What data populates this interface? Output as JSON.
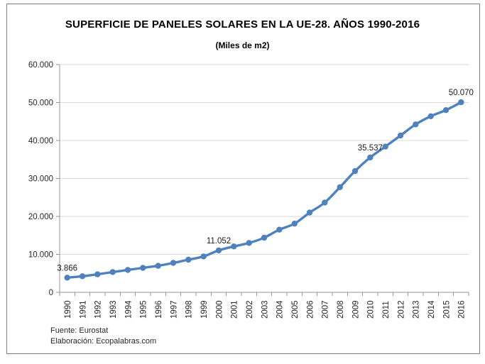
{
  "title": "SUPERFICIE DE PANELES SOLARES EN LA UE-28. AÑOS 1990-2016",
  "subtitle": "(Miles de m2)",
  "footer": {
    "source": "Fuente: Eurostat",
    "elaboration": "Elaboración: Ecopalabras.com"
  },
  "chart_data": {
    "type": "line",
    "title": "SUPERFICIE DE PANELES SOLARES EN LA UE-28. AÑOS 1990-2016",
    "subtitle": "(Miles de m2)",
    "ylabel": "",
    "xlabel": "",
    "legend": "none",
    "grid": true,
    "ylim": [
      0,
      60000
    ],
    "categories": [
      "1990",
      "1991",
      "1992",
      "1993",
      "1994",
      "1995",
      "1996",
      "1997",
      "1998",
      "1999",
      "2000",
      "2001",
      "2002",
      "2003",
      "2004",
      "2005",
      "2006",
      "2007",
      "2008",
      "2009",
      "2010",
      "2011",
      "2012",
      "2013",
      "2014",
      "2015",
      "2016"
    ],
    "series": [
      {
        "name": "Superficie de paneles solares (miles de m2)",
        "values": [
          3866,
          4250,
          4750,
          5350,
          5900,
          6450,
          7000,
          7750,
          8600,
          9450,
          11052,
          12100,
          13000,
          14400,
          16500,
          18100,
          21000,
          23650,
          27700,
          31950,
          35537,
          38400,
          41300,
          44250,
          46400,
          48000,
          50070
        ]
      }
    ],
    "data_labels": [
      {
        "category": "1990",
        "label": "3.866"
      },
      {
        "category": "2000",
        "label": "11.052"
      },
      {
        "category": "2010",
        "label": "35.537"
      },
      {
        "category": "2016",
        "label": "50.070"
      }
    ],
    "yticks": [
      {
        "value": 0,
        "label": "0"
      },
      {
        "value": 10000,
        "label": "10.000"
      },
      {
        "value": 20000,
        "label": "20.000"
      },
      {
        "value": 30000,
        "label": "30.000"
      },
      {
        "value": 40000,
        "label": "40.000"
      },
      {
        "value": 50000,
        "label": "50.000"
      },
      {
        "value": 60000,
        "label": "60.000"
      }
    ],
    "colors": {
      "line": "#4F81BD",
      "marker": "#4F81BD",
      "gridline": "#D9D9D9",
      "axis": "#969696",
      "label_text": "#262626",
      "frame_border": "#808080"
    }
  }
}
